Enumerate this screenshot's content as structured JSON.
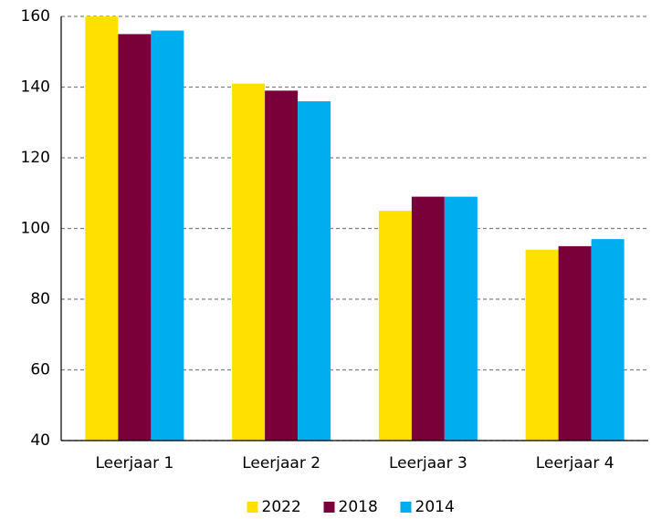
{
  "chart_data": {
    "type": "bar",
    "categories": [
      "Leerjaar 1",
      "Leerjaar 2",
      "Leerjaar 3",
      "Leerjaar 4"
    ],
    "series": [
      {
        "name": "2022",
        "color": "#FFE000",
        "values": [
          160,
          141,
          105,
          94
        ]
      },
      {
        "name": "2018",
        "color": "#7A0039",
        "values": [
          155,
          139,
          109,
          95
        ]
      },
      {
        "name": "2014",
        "color": "#00AEEF",
        "values": [
          156,
          136,
          109,
          97
        ]
      }
    ],
    "ylim": [
      40,
      160
    ],
    "yticks": [
      40,
      60,
      80,
      100,
      120,
      140,
      160
    ],
    "grid": true,
    "legend": "bottom"
  }
}
